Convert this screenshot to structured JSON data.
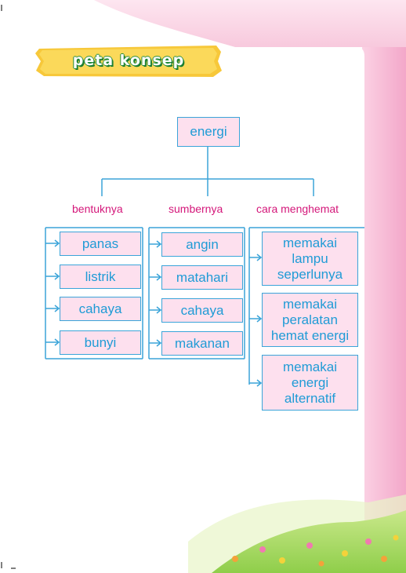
{
  "banner": {
    "title": "peta konsep"
  },
  "root": {
    "label": "energi"
  },
  "columns": [
    {
      "heading": "bentuknya",
      "items": [
        "panas",
        "listrik",
        "cahaya",
        "bunyi"
      ]
    },
    {
      "heading": "sumbernya",
      "items": [
        "angin",
        "matahari",
        "cahaya",
        "makanan"
      ]
    },
    {
      "heading": "cara menghemat",
      "items": [
        "memakai lampu seperlunya",
        "memakai peralatan hemat energi",
        "memakai energi alternatif"
      ]
    }
  ],
  "colors": {
    "line": "#3ba4d9",
    "box_fill": "#fde0ee",
    "heading": "#d4177a",
    "text": "#1f9bd6",
    "banner": "#f7c83a"
  }
}
